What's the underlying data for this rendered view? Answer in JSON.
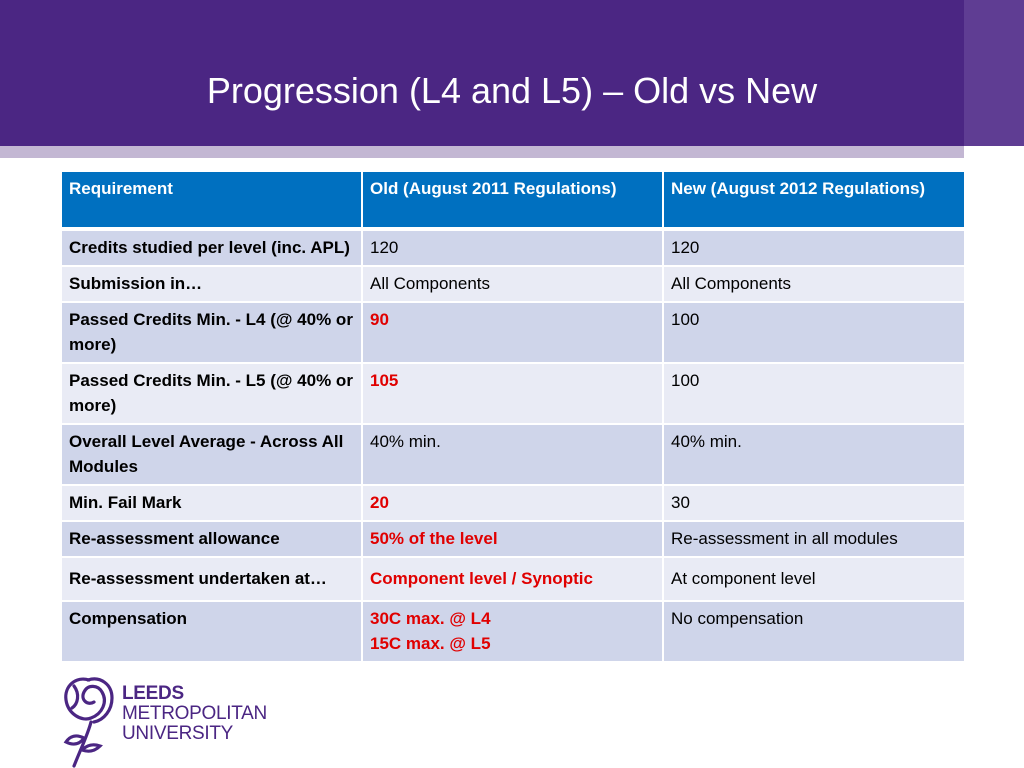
{
  "slide": {
    "title": "Progression (L4 and L5) – Old vs New"
  },
  "colors": {
    "header_purple": "#4b2683",
    "header_accent": "#5f3d93",
    "table_header_blue": "#0070c0",
    "row_dark": "#cfd5ea",
    "row_light": "#e9ebf5",
    "highlight_red": "#e00000"
  },
  "table": {
    "headers": [
      "Requirement",
      "Old (August 2011 Regulations)",
      "New (August 2012 Regulations)"
    ],
    "rows": [
      {
        "requirement": "Credits studied per level (inc. APL)",
        "old": "120",
        "old_highlight": false,
        "new": "120"
      },
      {
        "requirement": "Submission in…",
        "old": "All Components",
        "old_highlight": false,
        "new": "All Components"
      },
      {
        "requirement": "Passed Credits Min. - L4 (@ 40% or more)",
        "old": "90",
        "old_highlight": true,
        "new": "100"
      },
      {
        "requirement": "Passed Credits Min. - L5 (@ 40% or more)",
        "old": "105",
        "old_highlight": true,
        "new": "100"
      },
      {
        "requirement": "Overall Level Average - Across All Modules",
        "old": "40% min.",
        "old_highlight": false,
        "new": "40% min."
      },
      {
        "requirement": "Min. Fail Mark",
        "old": "20",
        "old_highlight": true,
        "new": "30"
      },
      {
        "requirement": "Re-assessment allowance",
        "old": "50% of the level",
        "old_highlight": true,
        "new": "Re-assessment in all modules"
      },
      {
        "requirement": "Re-assessment undertaken at…",
        "old": "Component level / Synoptic",
        "old_highlight": true,
        "new": "At component level"
      },
      {
        "requirement": "Compensation",
        "old": "30C max. @ L4\n15C max. @ L5",
        "old_highlight": true,
        "new": "No compensation"
      }
    ]
  },
  "logo": {
    "icon": "rose-emblem-icon",
    "lines": [
      "LEEDS",
      "METROPOLITAN",
      "UNIVERSITY"
    ]
  }
}
